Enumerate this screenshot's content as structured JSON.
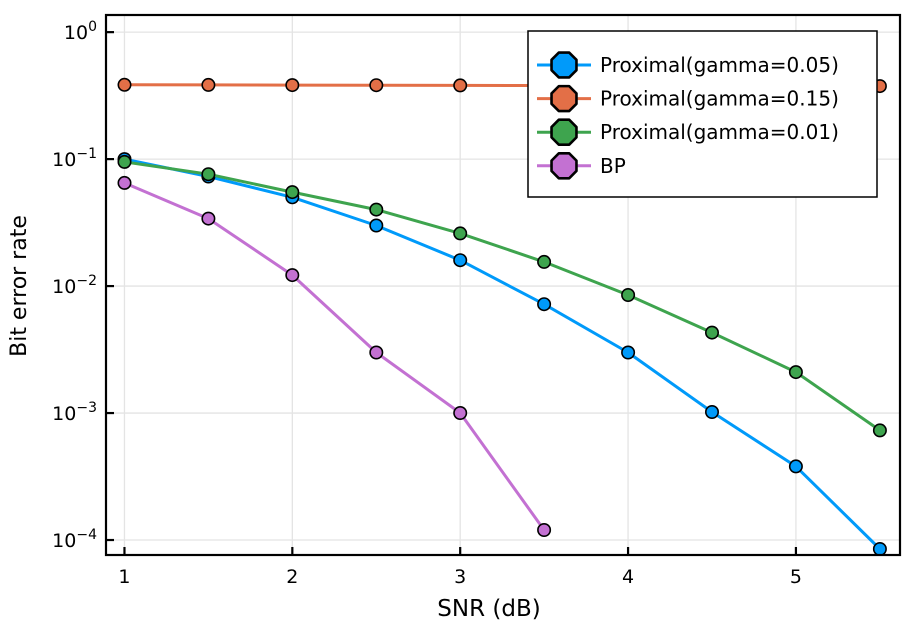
{
  "figure": {
    "background": "#FFFFFF",
    "frame_color": "#000000",
    "grid_color": "#E4E4E4"
  },
  "chart_data": {
    "type": "line",
    "title": "",
    "xlabel": "SNR (dB)",
    "ylabel": "Bit error rate",
    "xscale": "linear",
    "yscale": "log",
    "xlim": [
      0.89,
      5.62
    ],
    "ylim": [
      7.6e-05,
      1.36
    ],
    "ylim_log10": [
      -4.118,
      0.135
    ],
    "x_ticks": [
      1,
      2,
      3,
      4,
      5
    ],
    "y_tick_exponents": [
      0,
      -1,
      -2,
      -3,
      -4
    ],
    "y_tick_base": "10",
    "grid": true,
    "legend_position": "top-right",
    "marker": "circle",
    "legend_marker": "octagon",
    "series": [
      {
        "name": "Proximal(gamma=0.05)",
        "color": "#009AFA",
        "x": [
          1,
          1.5,
          2,
          2.5,
          3,
          3.5,
          4,
          4.5,
          5,
          5.5
        ],
        "y": [
          0.1,
          0.073,
          0.05,
          0.03,
          0.016,
          0.0072,
          0.003,
          0.00102,
          0.00038,
          8.5e-05
        ]
      },
      {
        "name": "Proximal(gamma=0.15)",
        "color": "#E36F47",
        "x": [
          1,
          1.5,
          2,
          2.5,
          3,
          3.5,
          4,
          4.5,
          5,
          5.5
        ],
        "y": [
          0.385,
          0.384,
          0.383,
          0.382,
          0.381,
          0.38,
          0.379,
          0.378,
          0.377,
          0.376
        ]
      },
      {
        "name": "Proximal(gamma=0.01)",
        "color": "#3EA44E",
        "x": [
          1,
          1.5,
          2,
          2.5,
          3,
          3.5,
          4,
          4.5,
          5,
          5.5
        ],
        "y": [
          0.095,
          0.076,
          0.055,
          0.04,
          0.026,
          0.0155,
          0.0085,
          0.0043,
          0.0021,
          0.00073
        ]
      },
      {
        "name": "BP",
        "color": "#C371D2",
        "x": [
          1,
          1.5,
          2,
          2.5,
          3,
          3.5
        ],
        "y": [
          0.065,
          0.034,
          0.0122,
          0.003,
          0.001,
          0.00012
        ]
      }
    ]
  }
}
